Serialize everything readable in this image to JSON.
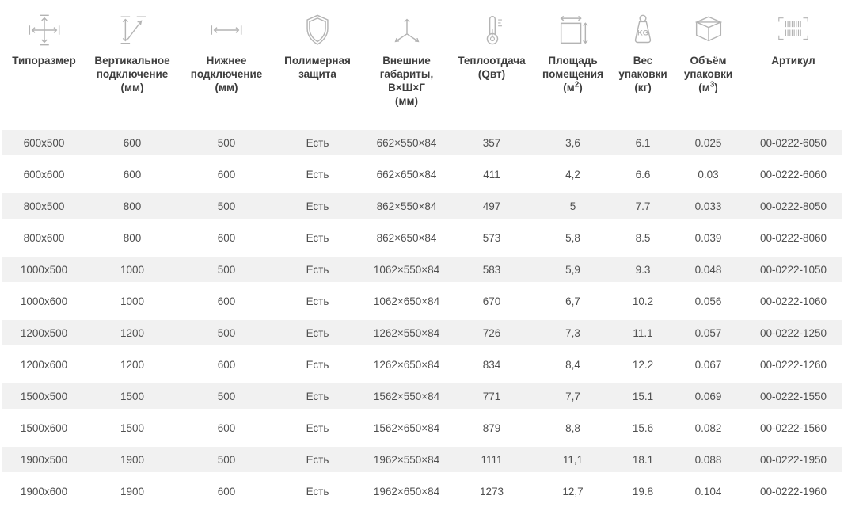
{
  "table": {
    "columns": [
      {
        "name": "type-size",
        "label": "Типоразмер",
        "unit_pre": "",
        "unit_sup": "",
        "unit_post": ""
      },
      {
        "name": "vertical-connection",
        "label": "Вертикальное\nподключение",
        "unit_pre": "(мм)",
        "unit_sup": "",
        "unit_post": ""
      },
      {
        "name": "bottom-connection",
        "label": "Нижнее\nподключение",
        "unit_pre": "(мм)",
        "unit_sup": "",
        "unit_post": ""
      },
      {
        "name": "polymer-protection",
        "label": "Полимерная\nзащита",
        "unit_pre": "",
        "unit_sup": "",
        "unit_post": ""
      },
      {
        "name": "outer-dimensions",
        "label": "Внешние\nгабариты,\nВ×Ш×Г",
        "unit_pre": "(мм)",
        "unit_sup": "",
        "unit_post": ""
      },
      {
        "name": "heat-output",
        "label": "Теплоотдача",
        "unit_pre": "(Qвт)",
        "unit_sup": "",
        "unit_post": ""
      },
      {
        "name": "room-area",
        "label": "Площадь\nпомещения",
        "unit_pre": "(м",
        "unit_sup": "2",
        "unit_post": ")"
      },
      {
        "name": "package-weight",
        "label": "Вес\nупаковки",
        "unit_pre": "(кг)",
        "unit_sup": "",
        "unit_post": ""
      },
      {
        "name": "package-volume",
        "label": "Объём\nупаковки",
        "unit_pre": "(м",
        "unit_sup": "3",
        "unit_post": ")"
      },
      {
        "name": "article",
        "label": "Артикул",
        "unit_pre": "",
        "unit_sup": "",
        "unit_post": ""
      }
    ],
    "rows": [
      [
        "600x500",
        "600",
        "500",
        "Есть",
        "662×550×84",
        "357",
        "3,6",
        "6.1",
        "0.025",
        "00-0222-6050"
      ],
      [
        "600x600",
        "600",
        "600",
        "Есть",
        "662×650×84",
        "411",
        "4,2",
        "6.6",
        "0.03",
        "00-0222-6060"
      ],
      [
        "800x500",
        "800",
        "500",
        "Есть",
        "862×550×84",
        "497",
        "5",
        "7.7",
        "0.033",
        "00-0222-8050"
      ],
      [
        "800x600",
        "800",
        "600",
        "Есть",
        "862×650×84",
        "573",
        "5,8",
        "8.5",
        "0.039",
        "00-0222-8060"
      ],
      [
        "1000x500",
        "1000",
        "500",
        "Есть",
        "1062×550×84",
        "583",
        "5,9",
        "9.3",
        "0.048",
        "00-0222-1050"
      ],
      [
        "1000x600",
        "1000",
        "600",
        "Есть",
        "1062×650×84",
        "670",
        "6,7",
        "10.2",
        "0.056",
        "00-0222-1060"
      ],
      [
        "1200x500",
        "1200",
        "500",
        "Есть",
        "1262×550×84",
        "726",
        "7,3",
        "11.1",
        "0.057",
        "00-0222-1250"
      ],
      [
        "1200x600",
        "1200",
        "600",
        "Есть",
        "1262×650×84",
        "834",
        "8,4",
        "12.2",
        "0.067",
        "00-0222-1260"
      ],
      [
        "1500x500",
        "1500",
        "500",
        "Есть",
        "1562×550×84",
        "771",
        "7,7",
        "15.1",
        "0.069",
        "00-0222-1550"
      ],
      [
        "1500x600",
        "1500",
        "600",
        "Есть",
        "1562×650×84",
        "879",
        "8,8",
        "15.6",
        "0.082",
        "00-0222-1560"
      ],
      [
        "1900x500",
        "1900",
        "500",
        "Есть",
        "1962×550×84",
        "1111",
        "11,1",
        "18.1",
        "0.088",
        "00-0222-1950"
      ],
      [
        "1900x600",
        "1900",
        "600",
        "Есть",
        "1962×650×84",
        "1273",
        "12,7",
        "19.8",
        "0.104",
        "00-0222-1960"
      ]
    ],
    "weight_icon_text": "KG"
  },
  "colors": {
    "alt_row_bg": "#f1f1f1",
    "header_text": "#3e3e3e",
    "cell_text": "#4f4f4f",
    "icon_color": "#b4b4b4",
    "background": "#ffffff"
  }
}
